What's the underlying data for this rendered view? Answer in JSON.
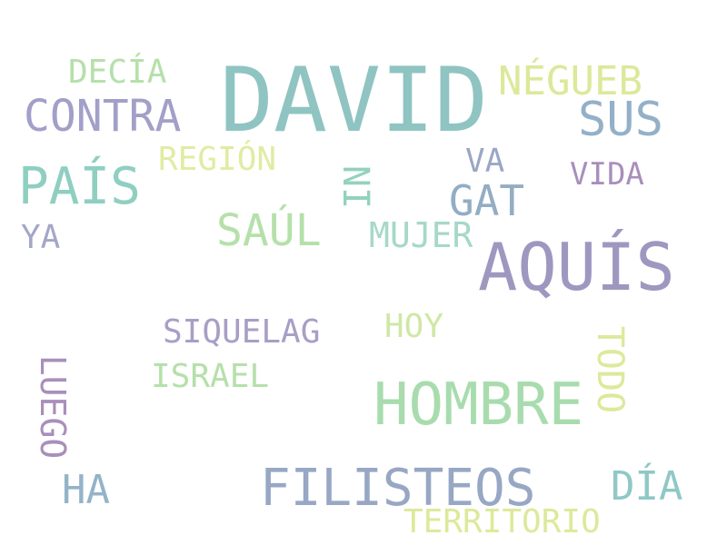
{
  "words": [
    {
      "text": "DAVID",
      "color": "#8fc4c2"
    },
    {
      "text": "AQUÍS",
      "color": "#9e98c0"
    },
    {
      "text": "HOMBRE",
      "color": "#a8dcae"
    },
    {
      "text": "FILISTEOS",
      "color": "#97a7c4"
    },
    {
      "text": "PAÍS",
      "color": "#8fcfc1"
    },
    {
      "text": "CONTRA",
      "color": "#a29fc8"
    },
    {
      "text": "SUS",
      "color": "#94b0c9"
    },
    {
      "text": "NÉGUEB",
      "color": "#dbe99a"
    },
    {
      "text": "SAÚL",
      "color": "#b5e0aa"
    },
    {
      "text": "GAT",
      "color": "#93adc3"
    },
    {
      "text": "DÍA",
      "color": "#8fc8c6"
    },
    {
      "text": "HA",
      "color": "#94b3c8"
    },
    {
      "text": "TODO",
      "color": "#dde99b"
    },
    {
      "text": "LUEGO",
      "color": "#a98fba"
    },
    {
      "text": "SIQUELAG",
      "color": "#a89ec6"
    },
    {
      "text": "TERRITORIO",
      "color": "#dde99b"
    },
    {
      "text": "DECÍA",
      "color": "#b5e0aa"
    },
    {
      "text": "REGIÓN",
      "color": "#e0eca2"
    },
    {
      "text": "ISRAEL",
      "color": "#b5e0aa"
    },
    {
      "text": "HOY",
      "color": "#cfe8a5"
    },
    {
      "text": "MUJER",
      "color": "#a6d8c8"
    },
    {
      "text": "VIDA",
      "color": "#a88fbc"
    },
    {
      "text": "NI",
      "color": "#93d2bd"
    },
    {
      "text": "VA",
      "color": "#9aa7c5"
    },
    {
      "text": "YA",
      "color": "#a4a6c8"
    }
  ]
}
